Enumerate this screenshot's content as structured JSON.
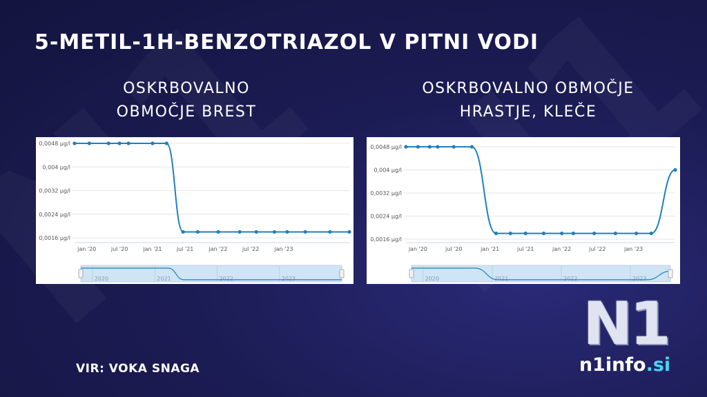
{
  "title": "5-METIL-1H-BENZOTRIAZOL V PITNI VODI",
  "source": "VIR: VOKA SNAGA",
  "logo": {
    "mark": "N1",
    "name": "n1info",
    "tld": ".si"
  },
  "colors": {
    "line": "#1d7fc0",
    "navigator_fill": "#cfe4f5",
    "grid": "#e6e6e6",
    "text": "#555555"
  },
  "chart_data": [
    {
      "type": "line",
      "title": "OSKRBOVALNO\nOBMOČJE BREST",
      "yticks": [
        "0,0048 µg/l",
        "0,004 µg/l",
        "0,0032 µg/l",
        "0,0024 µg/l",
        "0,0016 µg/l"
      ],
      "ylim": [
        0.0016,
        0.0048
      ],
      "xticks": [
        "jan '20",
        "jul '20",
        "jan '21",
        "jul '21",
        "jan '22",
        "jul '22",
        "jan '23"
      ],
      "navigator_years": [
        "2020",
        "2021",
        "2022",
        "2023"
      ],
      "series": [
        {
          "x": [
            "2019-10-25",
            "2020-01-15",
            "2020-05-01",
            "2020-07-01",
            "2020-08-20",
            "2021-01-01",
            "2021-03-20",
            "2021-06-20",
            "2021-09-10",
            "2022-01-01",
            "2022-05-01",
            "2022-08-01",
            "2022-11-10",
            "2023-01-20",
            "2023-05-01",
            "2023-09-15",
            "2024-01-01"
          ],
          "values": [
            0.0048,
            0.0048,
            0.0048,
            0.0048,
            0.0048,
            0.0048,
            0.0048,
            0.0018,
            0.0018,
            0.0018,
            0.0018,
            0.0018,
            0.0018,
            0.0018,
            0.0018,
            0.0018,
            0.0018
          ]
        }
      ]
    },
    {
      "type": "line",
      "title": "OSKRBOVALNO OBMOČJE\nHRASTJE, KLEČE",
      "yticks": [
        "0,0048 µg/l",
        "0,004 µg/l",
        "0,0032 µg/l",
        "0,0024 µg/l",
        "0,0016 µg/l"
      ],
      "ylim": [
        0.0016,
        0.0048
      ],
      "xticks": [
        "jan '20",
        "jul '20",
        "jan '21",
        "jul '21",
        "jan '22",
        "jul '22",
        "jan '23"
      ],
      "navigator_years": [
        "2020",
        "2021",
        "2022",
        "2023"
      ],
      "series": [
        {
          "x": [
            "2019-11-01",
            "2020-01-01",
            "2020-03-01",
            "2020-04-10",
            "2020-07-01",
            "2020-10-01",
            "2021-02-01",
            "2021-04-15",
            "2021-07-01",
            "2021-10-01",
            "2022-01-01",
            "2022-03-01",
            "2022-06-15",
            "2022-10-01",
            "2023-01-15",
            "2023-04-01",
            "2023-08-01"
          ],
          "values": [
            0.0048,
            0.0048,
            0.0048,
            0.0048,
            0.0048,
            0.0048,
            0.0018,
            0.0018,
            0.0018,
            0.0018,
            0.0018,
            0.0018,
            0.0018,
            0.0018,
            0.0018,
            0.0018,
            0.004
          ]
        }
      ]
    }
  ]
}
